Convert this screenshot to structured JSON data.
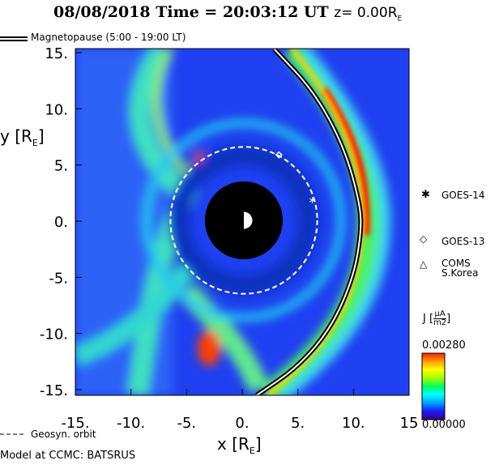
{
  "title": {
    "date": "08/08/2018",
    "time_label": "Time = 20:03:12 UT",
    "z_label": "z= 0.00R",
    "z_sub": "E"
  },
  "legend": {
    "magnetopause": "Magnetopause (5:00 - 19:00 LT)",
    "geosyn": "Geosyn. orbit"
  },
  "footer": "Model at CCMC: BATSRUS",
  "satellites": [
    {
      "name": "GOES-14",
      "symbol": "*",
      "x": 6.3,
      "y": 1.9
    },
    {
      "name": "GOES-13",
      "symbol": "◇",
      "x": 3.3,
      "y": 5.9
    },
    {
      "name": "COMS",
      "name2": "S.Korea",
      "symbol": "△"
    }
  ],
  "colorbar": {
    "label": "J",
    "unit_num": "μA",
    "unit_den": "m2",
    "max": "0.00280",
    "min": "0.00000",
    "colors": [
      "#3a0070",
      "#1a1aff",
      "#00a0ff",
      "#00ffff",
      "#00ff60",
      "#a0ff00",
      "#ffff00",
      "#ffa000",
      "#ff2000"
    ]
  },
  "chart_data": {
    "type": "heatmap",
    "title": "08/08/2018 Time = 20:03:12 UT z= 0.00 RE",
    "xlabel": "x [RE]",
    "ylabel": "y [RE]",
    "xlim": [
      -15,
      15
    ],
    "ylim": [
      -15,
      15
    ],
    "xticks": [
      "-15.",
      "-10.",
      "-5.",
      "0.",
      "5.",
      "10.",
      "15"
    ],
    "yticks": [
      "15.",
      "10.",
      "5.",
      "0.",
      "-5.",
      "-10.",
      "-15."
    ],
    "earth_radius_re": 3.5,
    "geosync_radius_re": 6.6,
    "magnetopause": [
      [
        2.9,
        15.3
      ],
      [
        6.5,
        11.5
      ],
      [
        9.2,
        6.5
      ],
      [
        10.6,
        1.5
      ],
      [
        10.7,
        -1
      ],
      [
        10,
        -5
      ],
      [
        8,
        -9.5
      ],
      [
        5,
        -13
      ],
      [
        1.3,
        -15.5
      ]
    ],
    "cbar_range": [
      0,
      0.0028
    ]
  }
}
